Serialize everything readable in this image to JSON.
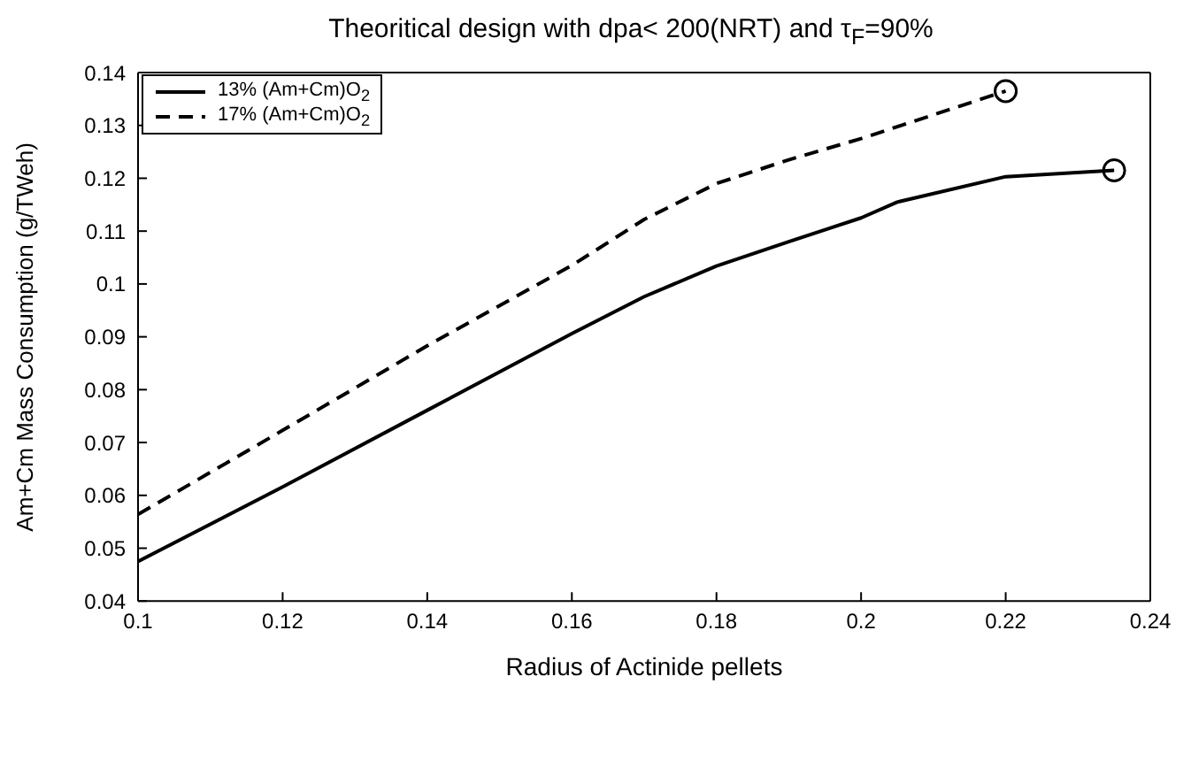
{
  "chart_data": {
    "type": "line",
    "title": "Theoritical design with dpa< 200(NRT) and τ$_{F}$=90%",
    "xlabel": "Radius of Actinide pellets",
    "ylabel": "Am+Cm Mass Consumption (g/TWeh)",
    "xlim": [
      0.1,
      0.24
    ],
    "xticks": [
      0.1,
      0.12,
      0.14,
      0.16,
      0.18,
      0.2,
      0.22,
      0.24
    ],
    "ylim": [
      0.04,
      0.14
    ],
    "yticks": [
      0.04,
      0.05,
      0.06,
      0.07,
      0.08,
      0.09,
      0.1,
      0.11,
      0.12,
      0.13,
      0.14
    ],
    "grid": false,
    "legend": "top left",
    "marker": "none",
    "series": [
      {
        "name": "13% (Am+Cm)O$_{2}$",
        "color": "#000000",
        "line_style": "solid",
        "x": [
          0.1,
          0.12,
          0.14,
          0.16,
          0.17,
          0.18,
          0.19,
          0.2,
          0.205,
          0.22,
          0.235
        ],
        "values": [
          0.0475,
          0.0616,
          0.0761,
          0.0906,
          0.0976,
          0.1034,
          0.108,
          0.1125,
          0.1155,
          0.1203,
          0.1215
        ]
      },
      {
        "name": "17% (Am+Cm)O$_{2}$",
        "color": "#000000",
        "line_style": "dashed",
        "x": [
          0.1,
          0.12,
          0.14,
          0.16,
          0.17,
          0.18,
          0.19,
          0.2,
          0.21,
          0.22
        ],
        "values": [
          0.0564,
          0.0723,
          0.0883,
          0.1035,
          0.1122,
          0.119,
          0.1235,
          0.1275,
          0.132,
          0.1365
        ]
      },
      {
        "type": "scatter",
        "marker": "circle",
        "color": "#000000",
        "x": [
          0.22,
          0.235
        ],
        "values": [
          0.1365,
          0.1215
        ]
      }
    ]
  }
}
